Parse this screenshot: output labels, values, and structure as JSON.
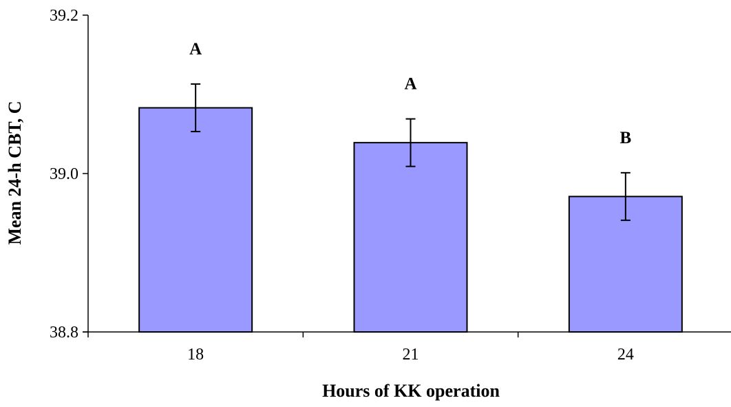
{
  "chart_data": {
    "type": "bar",
    "title": "",
    "xlabel": "Hours of KK operation",
    "ylabel": "Mean 24-h CBT, C",
    "categories": [
      "18",
      "21",
      "24"
    ],
    "values": [
      39.083,
      39.039,
      38.971
    ],
    "error": [
      0.03,
      0.03,
      0.03
    ],
    "significance_labels": [
      "A",
      "A",
      "B"
    ],
    "ylim": [
      38.8,
      39.2
    ],
    "yticks": [
      "38.8",
      "39.0",
      "39.2"
    ],
    "grid": false,
    "legend": "none",
    "bar_color": "#9999ff",
    "bar_edge_color": "#000000"
  }
}
